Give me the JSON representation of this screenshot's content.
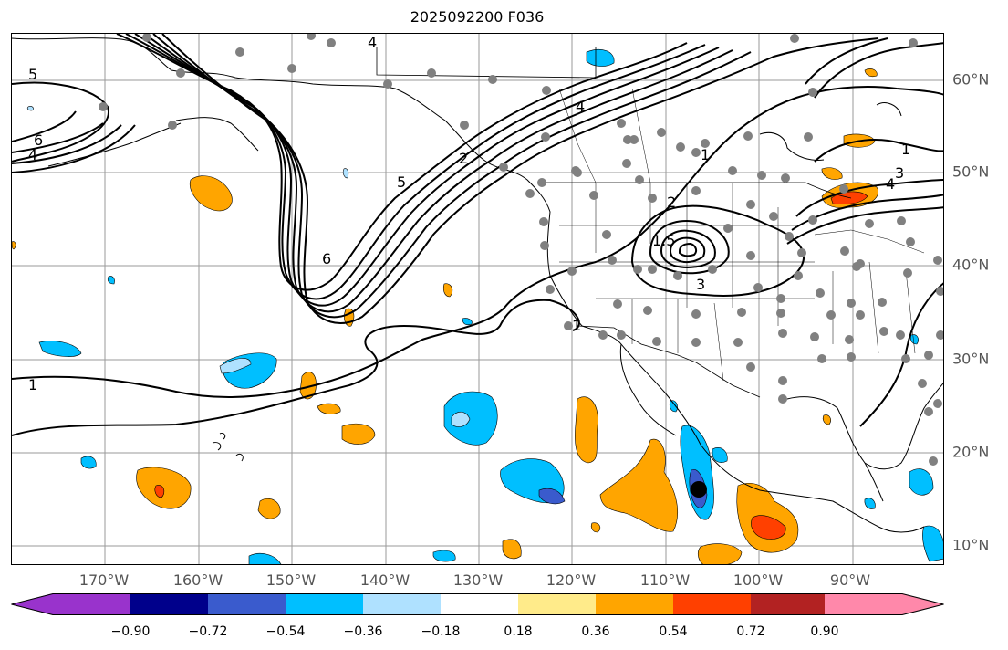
{
  "title": "2025092200 F036",
  "lon_labels": [
    "170°W",
    "160°W",
    "150°W",
    "140°W",
    "130°W",
    "120°W",
    "110°W",
    "100°W",
    "90°W"
  ],
  "lat_labels": [
    "60°N",
    "50°N",
    "40°N",
    "30°N",
    "20°N",
    "10°N"
  ],
  "contour_labels": [
    "5",
    "6",
    "4",
    "1",
    "6",
    "4",
    "2",
    "5",
    "4",
    "1",
    "2",
    "1.5",
    "3",
    "1",
    "3",
    "4",
    "1"
  ],
  "colorbar": {
    "ticks": [
      "−0.90",
      "−0.72",
      "−0.54",
      "−0.36",
      "−0.18",
      "0.18",
      "0.36",
      "0.54",
      "0.72",
      "0.90"
    ],
    "colors": [
      "#9933cc",
      "#00008b",
      "#3a5bcd",
      "#00bfff",
      "#afe1ff",
      "#ffffff",
      "#ffeb8a",
      "#ffa500",
      "#ff4000",
      "#b22222",
      "#ff88aa"
    ]
  },
  "colors": {
    "grid": "#9a9a9a",
    "contour": "#000000",
    "stations": "#808080",
    "target_marker": "#000000"
  }
}
